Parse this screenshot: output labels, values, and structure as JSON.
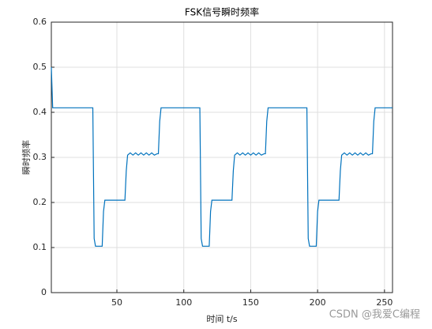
{
  "chart_data": {
    "type": "line",
    "title": "FSK信号瞬时频率",
    "x_label": "时间 t/s",
    "y_label": "瞬时频率",
    "watermark": "CSDN @我爱C编程",
    "color": "#0072bd",
    "grid": true,
    "xlim": [
      1,
      256
    ],
    "ylim": [
      0,
      0.6
    ],
    "xticks": [
      50,
      100,
      150,
      200,
      250
    ],
    "yticks": [
      0,
      0.1,
      0.2,
      0.3,
      0.4,
      0.5,
      0.6
    ],
    "x": [
      1,
      2,
      32,
      33,
      34,
      39,
      40,
      41,
      56,
      57,
      58,
      60,
      62,
      64,
      66,
      68,
      70,
      72,
      74,
      76,
      78,
      80,
      81,
      82,
      83,
      112,
      113,
      114,
      119,
      120,
      121,
      136,
      137,
      138,
      140,
      142,
      144,
      146,
      148,
      150,
      152,
      154,
      156,
      158,
      160,
      161,
      162,
      163,
      192,
      193,
      194,
      199,
      200,
      201,
      216,
      217,
      218,
      220,
      222,
      224,
      226,
      228,
      230,
      232,
      234,
      236,
      238,
      240,
      241,
      242,
      243,
      256
    ],
    "values": [
      0.5,
      0.41,
      0.41,
      0.12,
      0.103,
      0.103,
      0.18,
      0.205,
      0.205,
      0.27,
      0.305,
      0.31,
      0.305,
      0.31,
      0.305,
      0.31,
      0.305,
      0.31,
      0.305,
      0.31,
      0.305,
      0.308,
      0.308,
      0.38,
      0.41,
      0.41,
      0.12,
      0.103,
      0.103,
      0.18,
      0.205,
      0.205,
      0.27,
      0.305,
      0.31,
      0.305,
      0.31,
      0.305,
      0.31,
      0.305,
      0.31,
      0.305,
      0.31,
      0.305,
      0.308,
      0.308,
      0.38,
      0.41,
      0.41,
      0.12,
      0.103,
      0.103,
      0.18,
      0.205,
      0.205,
      0.27,
      0.305,
      0.31,
      0.305,
      0.31,
      0.305,
      0.31,
      0.305,
      0.31,
      0.305,
      0.31,
      0.305,
      0.308,
      0.308,
      0.38,
      0.41,
      0.41
    ]
  }
}
